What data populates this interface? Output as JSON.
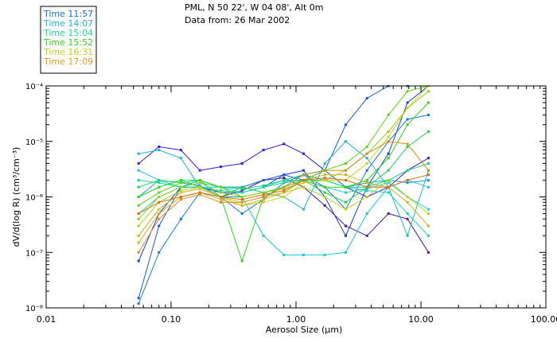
{
  "header": {
    "location": "PML, N 50 22', W 04 08', Alt 0m",
    "date": "Data from: 26 Mar 2002"
  },
  "chart_data": {
    "type": "line",
    "title": "PML, N 50 22', W 04 08', Alt 0m",
    "subtitle": "Data from: 26 Mar 2002",
    "xlabel": "Aerosol Size (μm)",
    "ylabel": "dV/d(log R) (cm³/cm⁻³)",
    "xscale": "log",
    "yscale": "log",
    "xlim": [
      0.01,
      100
    ],
    "ylim": [
      1e-08,
      0.0001
    ],
    "x_ticks": [
      0.01,
      0.1,
      1,
      10,
      100
    ],
    "x_tick_labels": [
      "0.01",
      "0.10",
      "1.00",
      "10.00",
      "100.00"
    ],
    "y_ticks": [
      1e-08,
      1e-07,
      1e-06,
      1e-05,
      0.0001
    ],
    "y_tick_labels": [
      "10⁻⁸",
      "10⁻⁷",
      "10⁻⁶",
      "10⁻⁵",
      "10⁻⁴"
    ],
    "x": [
      0.055,
      0.08,
      0.12,
      0.17,
      0.25,
      0.37,
      0.55,
      0.8,
      1.15,
      1.7,
      2.5,
      3.7,
      5.5,
      7.8,
      11.5
    ],
    "legend": {
      "placement": "top-left",
      "entries": [
        "Time 11:57",
        "Time 14:07",
        "Time 15:04",
        "Time 15:52",
        "Time 16:31",
        "Time 17:09"
      ],
      "colors": [
        "#1a6fd6",
        "#1ab8d6",
        "#1ad68a",
        "#33d61a",
        "#b8d61a",
        "#e0a01a"
      ]
    },
    "series": [
      {
        "name": "s01",
        "color": "#4b1a96",
        "values": [
          2e-07,
          6e-07,
          1.2e-06,
          1.4e-06,
          1e-06,
          1.3e-06,
          2e-06,
          2.2e-06,
          1.5e-06,
          7e-07,
          3e-07,
          2e-07,
          5e-07,
          4e-07,
          1e-07
        ]
      },
      {
        "name": "s02",
        "color": "#3a1ad6",
        "values": [
          4e-06,
          8e-06,
          7e-06,
          3e-06,
          3.5e-06,
          4e-06,
          7e-06,
          9e-06,
          6e-06,
          3e-06,
          1.5e-06,
          1e-06,
          1.5e-06,
          3e-06,
          5e-06
        ]
      },
      {
        "name": "s03",
        "color": "#1a3ad6",
        "values": [
          7e-08,
          5e-07,
          1.5e-06,
          1.5e-06,
          1.2e-06,
          1.2e-06,
          1.5e-06,
          2.5e-06,
          3e-06,
          1e-06,
          2e-07,
          1.5e-06,
          6e-06,
          5e-05,
          0.0001
        ]
      },
      {
        "name": "s04",
        "color": "#1a5ad6",
        "values": [
          1.5e-08,
          3e-07,
          1.5e-06,
          2e-06,
          1.5e-06,
          1.5e-06,
          2e-06,
          2.5e-06,
          2e-06,
          3e-06,
          2e-05,
          6e-05,
          0.0001,
          0.0001,
          0.0001
        ]
      },
      {
        "name": "s05",
        "color": "#1a7ad6",
        "values": [
          1.2e-08,
          1e-07,
          4e-07,
          1.2e-06,
          1e-06,
          5e-07,
          9e-07,
          1.8e-06,
          2.5e-06,
          1.5e-06,
          6e-07,
          3e-06,
          1e-05,
          2.5e-05,
          3e-05
        ]
      },
      {
        "name": "s06",
        "color": "#1a9ad6",
        "values": [
          1e-06,
          2e-06,
          1.8e-06,
          1.6e-06,
          1e-06,
          1e-06,
          1.2e-06,
          1.5e-06,
          2.5e-06,
          3e-06,
          1.5e-06,
          1.8e-06,
          2e-06,
          1.8e-06,
          2e-06
        ]
      },
      {
        "name": "s07",
        "color": "#1ab4d6",
        "values": [
          6e-06,
          7e-06,
          5e-06,
          1.5e-06,
          1.5e-06,
          1.5e-06,
          1.2e-06,
          1e-06,
          6e-07,
          4e-06,
          1e-05,
          5e-06,
          1.5e-06,
          2e-07,
          3e-06
        ]
      },
      {
        "name": "s08",
        "color": "#1ac8d6",
        "values": [
          3e-06,
          2e-06,
          1.5e-06,
          2e-06,
          1.5e-06,
          1e-06,
          2e-07,
          9e-08,
          9e-08,
          9e-08,
          1e-07,
          5e-07,
          1.5e-06,
          2e-06,
          1.5e-06
        ]
      },
      {
        "name": "s09",
        "color": "#1ad6c8",
        "values": [
          1e-06,
          1.5e-06,
          2e-06,
          2e-06,
          1.5e-06,
          1.2e-06,
          1.5e-06,
          2e-06,
          2e-06,
          1.5e-06,
          1.2e-06,
          1.4e-06,
          1.8e-06,
          1e-06,
          6e-07
        ]
      },
      {
        "name": "s10",
        "color": "#1ad6a4",
        "values": [
          2e-06,
          1.8e-06,
          1.5e-06,
          1.5e-06,
          1.3e-06,
          1.2e-06,
          1.5e-06,
          1.8e-06,
          2e-06,
          2e-06,
          1.5e-06,
          1.3e-06,
          1.2e-06,
          5e-07,
          2e-07
        ]
      },
      {
        "name": "s11",
        "color": "#1ad67a",
        "values": [
          5e-07,
          1e-06,
          1.5e-06,
          1.8e-06,
          1.5e-06,
          1.4e-06,
          1.6e-06,
          2e-06,
          2.5e-06,
          2e-06,
          1.5e-06,
          1.5e-06,
          2e-06,
          3e-06,
          4e-06
        ]
      },
      {
        "name": "s12",
        "color": "#1ad650",
        "values": [
          1.5e-06,
          2e-06,
          1.8e-06,
          2e-06,
          1e-06,
          1.5e-06,
          1.2e-06,
          1.5e-06,
          2e-06,
          1.2e-06,
          8e-07,
          1.5e-06,
          3e-06,
          8e-06,
          1.5e-05
        ]
      },
      {
        "name": "s13",
        "color": "#2ed61a",
        "values": [
          1e-06,
          1.5e-06,
          2e-06,
          1.5e-06,
          1e-06,
          7e-08,
          1e-06,
          1.5e-06,
          2e-06,
          1.5e-06,
          1.5e-06,
          2e-06,
          5e-06,
          2e-05,
          5e-05
        ]
      },
      {
        "name": "s14",
        "color": "#5ad61a",
        "values": [
          7e-07,
          1.2e-06,
          1.8e-06,
          2e-06,
          1.5e-06,
          1e-06,
          1.2e-06,
          1.5e-06,
          2e-06,
          3e-06,
          4e-06,
          8e-06,
          3e-05,
          8e-05,
          0.0001
        ]
      },
      {
        "name": "s15",
        "color": "#8ad61a",
        "values": [
          4e-07,
          1e-06,
          1.5e-06,
          1.8e-06,
          1.2e-06,
          1e-06,
          1.2e-06,
          1.4e-06,
          1.8e-06,
          2e-06,
          3e-06,
          6e-06,
          1.5e-05,
          4e-05,
          8e-05
        ]
      },
      {
        "name": "s16",
        "color": "#b4d61a",
        "values": [
          3e-07,
          8e-07,
          1.3e-06,
          1.5e-06,
          1e-06,
          8e-07,
          1e-06,
          1.2e-06,
          1.5e-06,
          1e-06,
          6e-07,
          1e-06,
          2e-06,
          1e-06,
          5e-07
        ]
      },
      {
        "name": "s17",
        "color": "#d6d01a",
        "values": [
          2e-07,
          6e-07,
          1.2e-06,
          1.4e-06,
          1e-06,
          7e-07,
          8e-07,
          1e-06,
          1.8e-06,
          2e-06,
          2e-06,
          4e-06,
          1.2e-05,
          4e-05,
          0.0001
        ]
      },
      {
        "name": "s18",
        "color": "#d6b01a",
        "values": [
          1.5e-07,
          5e-07,
          1e-06,
          1.2e-06,
          9e-07,
          7e-07,
          9e-07,
          1.2e-06,
          2e-06,
          2.5e-06,
          2.5e-06,
          1.8e-06,
          1.5e-06,
          8e-07,
          3e-07
        ]
      },
      {
        "name": "s19",
        "color": "#d6901a",
        "values": [
          1e-07,
          4e-07,
          9e-07,
          1.1e-06,
          8e-07,
          8e-07,
          1e-06,
          1.5e-06,
          2.5e-06,
          3e-06,
          3e-06,
          6e-06,
          1e-05,
          9e-06,
          3e-06
        ]
      },
      {
        "name": "s20",
        "color": "#d6701a",
        "values": [
          5e-07,
          8e-07,
          1e-06,
          1.2e-06,
          1e-06,
          9e-07,
          1.1e-06,
          1.3e-06,
          2e-06,
          2.2e-06,
          2e-06,
          1.5e-06,
          1.5e-06,
          2e-06,
          2.5e-06
        ]
      }
    ]
  }
}
